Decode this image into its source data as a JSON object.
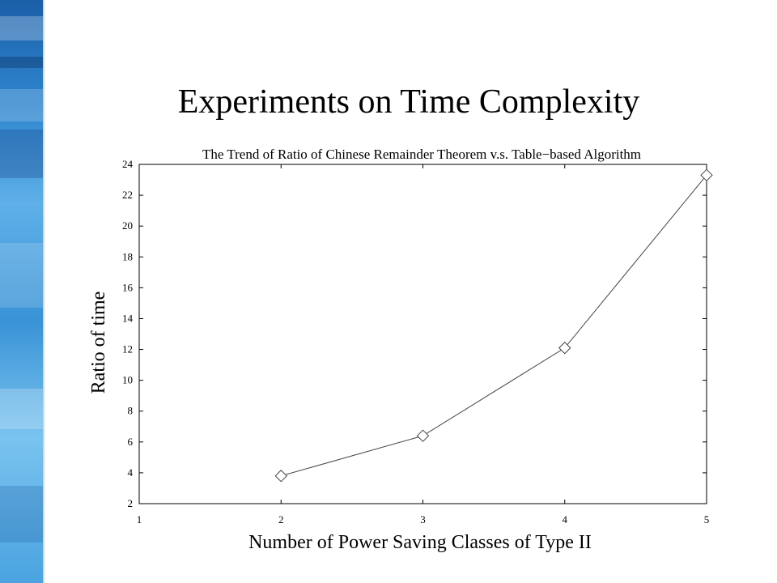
{
  "slide": {
    "title": "Experiments on Time Complexity"
  },
  "chart_data": {
    "type": "line",
    "title": "The Trend of Ratio of Chinese Remainder Theorem v.s. Table−based Algorithm",
    "xlabel": "Number of Power Saving Classes of Type II",
    "ylabel": "Ratio of time",
    "xlim": [
      1,
      5
    ],
    "ylim": [
      2,
      24
    ],
    "xticks": [
      1,
      2,
      3,
      4,
      5
    ],
    "yticks": [
      2,
      4,
      6,
      8,
      10,
      12,
      14,
      16,
      18,
      20,
      22,
      24
    ],
    "grid": false,
    "marker": "diamond",
    "series": [
      {
        "x": [
          2,
          3,
          4,
          5
        ],
        "y": [
          3.8,
          6.4,
          12.1,
          23.3
        ]
      }
    ],
    "colors": {
      "line": "#444444",
      "axes": "#000000"
    }
  }
}
